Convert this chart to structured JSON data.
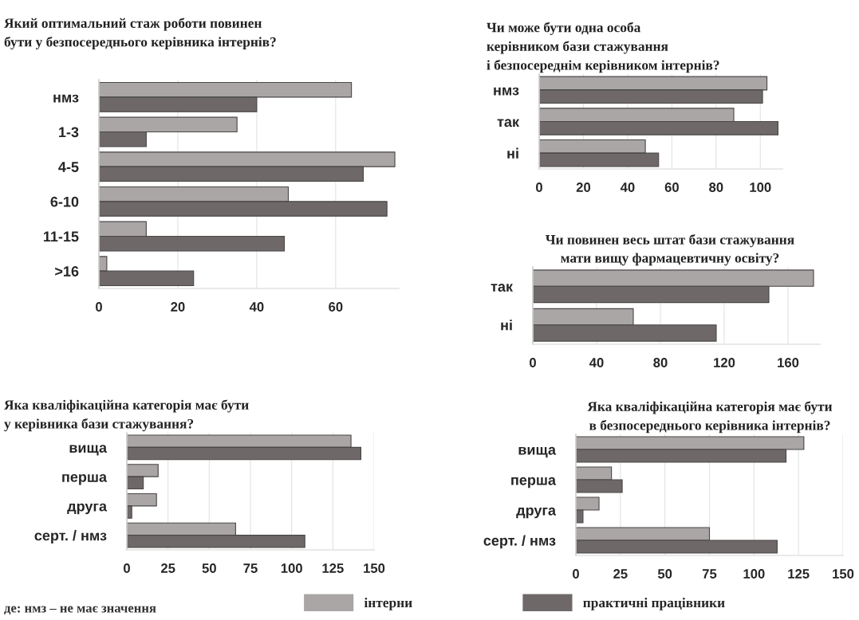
{
  "chart_data": [
    {
      "type": "bar",
      "orientation": "horizontal",
      "title": "Який оптимальний стаж роботи повинен\nбути у безпосереднього керівника інтернів?",
      "categories": [
        "нмз",
        "1-3",
        "4-5",
        "6-10",
        "11-15",
        ">16"
      ],
      "series": [
        {
          "name": "інтерни",
          "color": "#aaa6a6",
          "values": [
            64,
            35,
            75,
            48,
            12,
            2
          ]
        },
        {
          "name": "практичні працівники",
          "color": "#6e6868",
          "values": [
            40,
            12,
            67,
            73,
            47,
            24
          ]
        }
      ],
      "xlim": [
        0,
        76
      ],
      "xticks": [
        0,
        20,
        40,
        60
      ],
      "grid": "x",
      "legend": "bottom"
    },
    {
      "type": "bar",
      "orientation": "horizontal",
      "title": "Чи може бути одна особа\nкерівником бази стажування\nі безпосереднім керівником інтернів?",
      "categories": [
        "нмз",
        "так",
        "ні"
      ],
      "series": [
        {
          "color": "#aaa6a6",
          "values": [
            103,
            88,
            48
          ]
        },
        {
          "color": "#6e6868",
          "values": [
            101,
            108,
            54
          ]
        }
      ],
      "xlim": [
        0,
        110
      ],
      "xticks": [
        0,
        20,
        40,
        60,
        80,
        100
      ],
      "grid": "x"
    },
    {
      "type": "bar",
      "orientation": "horizontal",
      "title": "Чи повинен весь штат бази стажування\nмати вищу фармацевтичну освіту?",
      "categories": [
        "так",
        "ні"
      ],
      "series": [
        {
          "color": "#aaa6a6",
          "values": [
            176,
            63
          ]
        },
        {
          "color": "#6e6868",
          "values": [
            148,
            115
          ]
        }
      ],
      "xlim": [
        0,
        180
      ],
      "xticks": [
        0,
        40,
        80,
        120,
        160
      ],
      "grid": "x"
    },
    {
      "type": "bar",
      "orientation": "horizontal",
      "title": "Яка кваліфікаційна категорія має бути\nу керівника бази стажування?",
      "categories": [
        "вища",
        "перша",
        "друга",
        "серт. / нмз"
      ],
      "series": [
        {
          "color": "#aaa6a6",
          "values": [
            136,
            19,
            18,
            66
          ]
        },
        {
          "color": "#6e6868",
          "values": [
            142,
            10,
            3,
            108
          ]
        }
      ],
      "xlim": [
        0,
        150
      ],
      "xticks": [
        0,
        25,
        50,
        75,
        100,
        125,
        150
      ],
      "grid": "x",
      "annotations": [
        "де: нмз – не має значення"
      ]
    },
    {
      "type": "bar",
      "orientation": "horizontal",
      "title": "Яка кваліфікаційна категорія має бути\nв безпосереднього керівника інтернів?",
      "categories": [
        "вища",
        "перша",
        "друга",
        "серт. / нмз"
      ],
      "series": [
        {
          "color": "#aaa6a6",
          "values": [
            128,
            20,
            13,
            75
          ]
        },
        {
          "color": "#6e6868",
          "values": [
            118,
            26,
            4,
            113
          ]
        }
      ],
      "xlim": [
        0,
        150
      ],
      "xticks": [
        0,
        25,
        50,
        75,
        100,
        125,
        150
      ],
      "grid": "x"
    }
  ]
}
